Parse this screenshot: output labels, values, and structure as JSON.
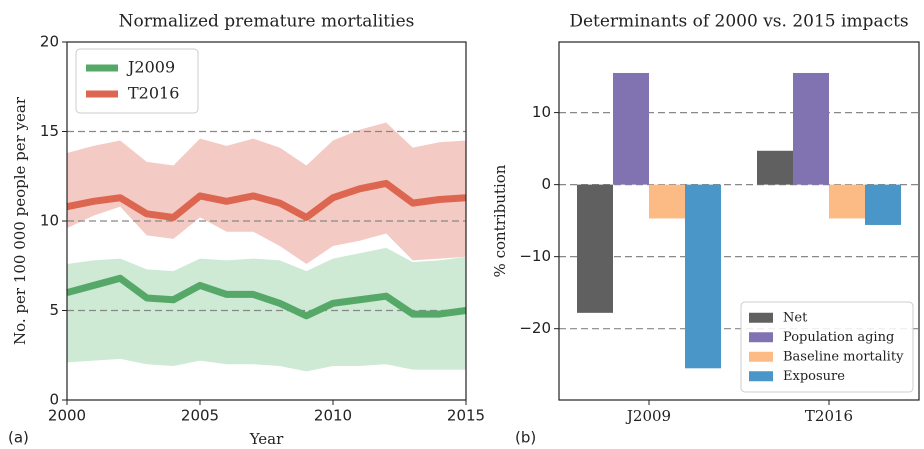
{
  "chart_data": [
    {
      "type": "line",
      "title": "Normalized premature mortalities",
      "panel_label": "(a)",
      "xlabel": "Year",
      "ylabel": "No. per 100 000 people per year",
      "x": [
        2000,
        2001,
        2002,
        2003,
        2004,
        2005,
        2006,
        2007,
        2008,
        2009,
        2010,
        2011,
        2012,
        2013,
        2014,
        2015
      ],
      "xlim": [
        2000,
        2015
      ],
      "xticks": [
        2000,
        2005,
        2010,
        2015
      ],
      "ylim": [
        0,
        20
      ],
      "yticks": [
        0,
        5,
        10,
        15,
        20
      ],
      "grid": true,
      "legend": "upper left",
      "series": [
        {
          "name": "J2009",
          "color": "#55a868",
          "band_color": "#b9dfc2",
          "values": [
            6.0,
            6.4,
            6.8,
            5.7,
            5.6,
            6.4,
            5.9,
            5.9,
            5.4,
            4.7,
            5.4,
            5.6,
            5.8,
            4.8,
            4.8,
            5.0
          ],
          "lower": [
            2.1,
            2.2,
            2.3,
            2.0,
            1.9,
            2.2,
            2.0,
            2.0,
            1.9,
            1.6,
            1.9,
            1.9,
            2.0,
            1.7,
            1.7,
            1.7
          ],
          "upper": [
            7.6,
            7.8,
            7.9,
            7.3,
            7.2,
            7.9,
            7.8,
            7.9,
            7.8,
            7.2,
            7.9,
            8.2,
            8.5,
            7.7,
            7.8,
            8.0
          ]
        },
        {
          "name": "T2016",
          "color": "#dd6650",
          "band_color": "#f0b4ab",
          "values": [
            10.8,
            11.1,
            11.3,
            10.4,
            10.2,
            11.4,
            11.1,
            11.4,
            11.0,
            10.2,
            11.3,
            11.8,
            12.1,
            11.0,
            11.2,
            11.3
          ],
          "lower": [
            9.6,
            10.3,
            10.8,
            9.2,
            9.0,
            10.2,
            9.4,
            9.4,
            8.6,
            7.6,
            8.6,
            8.9,
            9.3,
            7.8,
            7.9,
            8.0
          ],
          "upper": [
            13.8,
            14.2,
            14.5,
            13.3,
            13.1,
            14.6,
            14.2,
            14.6,
            14.1,
            13.1,
            14.5,
            15.1,
            15.5,
            14.1,
            14.4,
            14.5
          ]
        }
      ]
    },
    {
      "type": "bar",
      "title": "Determinants of 2000 vs. 2015 impacts",
      "panel_label": "(b)",
      "ylabel": "% contribution",
      "categories": [
        "J2009",
        "T2016"
      ],
      "ylim": [
        -29.9,
        19.8
      ],
      "yticks": [
        {
          "value": -20,
          "label": "−20"
        },
        {
          "value": -10,
          "label": "−10"
        },
        0,
        10
      ],
      "grid": true,
      "legend": "lower right",
      "series": [
        {
          "name": "Net",
          "color": "#606060",
          "values": [
            -17.8,
            4.7
          ]
        },
        {
          "name": "Population aging",
          "color": "#8172b2",
          "values": [
            15.5,
            15.5
          ]
        },
        {
          "name": "Baseline mortality",
          "color": "#fcbb84",
          "values": [
            -4.7,
            -4.7
          ]
        },
        {
          "name": "Exposure",
          "color": "#4a96c8",
          "values": [
            -25.5,
            -5.6
          ]
        }
      ]
    }
  ]
}
